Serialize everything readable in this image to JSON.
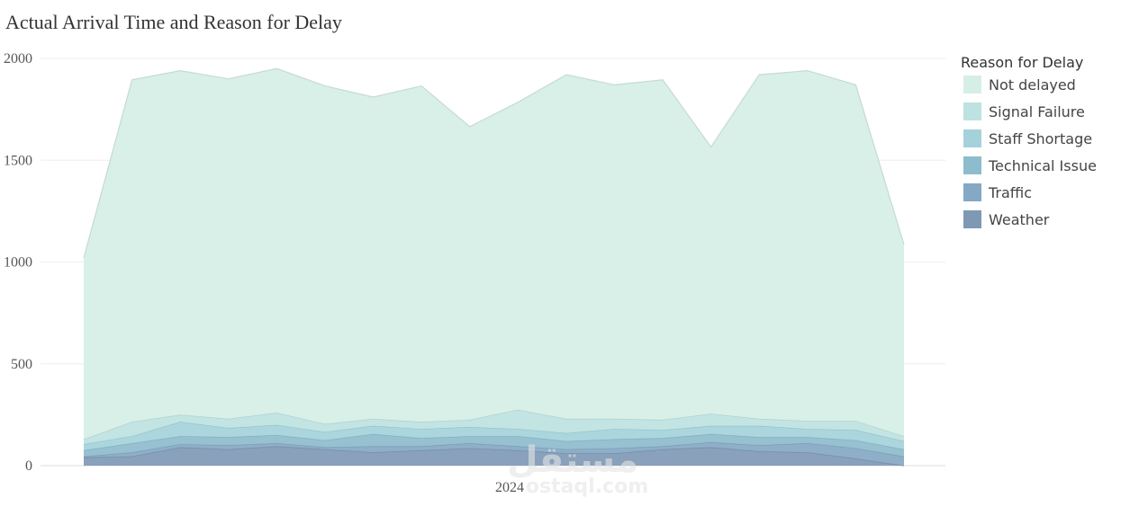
{
  "chart_data": {
    "type": "area",
    "stacked": true,
    "title": "Actual Arrival Time and Reason for Delay",
    "xlabel": "",
    "ylabel": "",
    "x_tick_labels": [
      "2024"
    ],
    "y_ticks": [
      0,
      500,
      1000,
      1500,
      2000
    ],
    "ylim": [
      0,
      2000
    ],
    "grid": true,
    "legend_title": "Reason for Delay",
    "legend_position": "right",
    "x": [
      1,
      2,
      3,
      4,
      5,
      6,
      7,
      8,
      9,
      10,
      11,
      12,
      13,
      14,
      15,
      16,
      17,
      18
    ],
    "series": [
      {
        "name": "Weather",
        "color": "#7f99b5",
        "values": [
          40,
          45,
          90,
          80,
          95,
          80,
          65,
          75,
          85,
          75,
          60,
          60,
          80,
          90,
          70,
          65,
          35,
          0
        ]
      },
      {
        "name": "Traffic",
        "color": "#85a8c4",
        "values": [
          5,
          20,
          15,
          20,
          15,
          10,
          30,
          20,
          25,
          20,
          20,
          25,
          15,
          25,
          30,
          45,
          50,
          45
        ]
      },
      {
        "name": "Technical Issue",
        "color": "#8ebccd",
        "values": [
          30,
          45,
          40,
          40,
          40,
          35,
          60,
          40,
          35,
          50,
          40,
          45,
          40,
          40,
          40,
          30,
          40,
          35
        ]
      },
      {
        "name": "Staff Shortage",
        "color": "#a5d2da",
        "values": [
          30,
          35,
          70,
          45,
          50,
          40,
          40,
          45,
          45,
          35,
          40,
          50,
          40,
          40,
          55,
          40,
          50,
          40
        ]
      },
      {
        "name": "Signal Failure",
        "color": "#bde2e1",
        "values": [
          25,
          70,
          35,
          45,
          60,
          40,
          35,
          35,
          35,
          95,
          70,
          50,
          50,
          60,
          35,
          40,
          45,
          25
        ]
      },
      {
        "name": "Not delayed",
        "color": "#d6efe6",
        "values": [
          890,
          1680,
          1690,
          1670,
          1690,
          1660,
          1580,
          1650,
          1440,
          1510,
          1690,
          1640,
          1670,
          1310,
          1690,
          1720,
          1650,
          940
        ]
      }
    ]
  },
  "watermark": {
    "logo_text": "مستقل",
    "url_text": "ostaql.com"
  }
}
